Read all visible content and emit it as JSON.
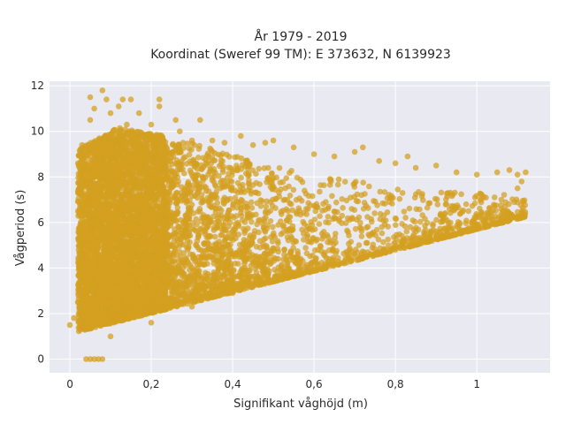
{
  "chart_data": {
    "type": "scatter",
    "title": [
      "År 1979 - 2019",
      "Koordinat (Sweref 99 TM): E 373632, N 6139923"
    ],
    "xlabel": "Signifikant våghöjd (m)",
    "ylabel": "Vågperiod (s)",
    "xlim": [
      -0.05,
      1.18
    ],
    "ylim": [
      -0.6,
      12.2
    ],
    "xticks": [
      0,
      0.2,
      0.4,
      0.6,
      0.8,
      1
    ],
    "xtick_labels": [
      "0",
      "0,2",
      "0,4",
      "0,6",
      "0,8",
      "1"
    ],
    "yticks": [
      0,
      2,
      4,
      6,
      8,
      10,
      12
    ],
    "ytick_labels": [
      "0",
      "2",
      "4",
      "6",
      "8",
      "10",
      "12"
    ],
    "grid": true,
    "background": "#e9e9f1",
    "marker_color": "#d4a020",
    "series": [
      {
        "points": [
          [
            0.0,
            1.5
          ],
          [
            0.01,
            1.8
          ],
          [
            0.02,
            2.5
          ],
          [
            0.02,
            6.5
          ],
          [
            0.02,
            8.6
          ],
          [
            0.03,
            3.0
          ],
          [
            0.03,
            9.4
          ],
          [
            0.03,
            7.2
          ],
          [
            0.04,
            0.0
          ],
          [
            0.05,
            0.0
          ],
          [
            0.06,
            0.0
          ],
          [
            0.07,
            0.0
          ],
          [
            0.08,
            0.0
          ],
          [
            0.05,
            10.5
          ],
          [
            0.05,
            11.5
          ],
          [
            0.06,
            11.0
          ],
          [
            0.08,
            11.8
          ],
          [
            0.09,
            11.4
          ],
          [
            0.1,
            10.8
          ],
          [
            0.12,
            11.1
          ],
          [
            0.13,
            11.4
          ],
          [
            0.14,
            10.3
          ],
          [
            0.15,
            11.4
          ],
          [
            0.17,
            10.8
          ],
          [
            0.2,
            10.3
          ],
          [
            0.22,
            11.4
          ],
          [
            0.22,
            11.1
          ],
          [
            0.26,
            10.5
          ],
          [
            0.27,
            10.0
          ],
          [
            0.3,
            9.6
          ],
          [
            0.32,
            10.5
          ],
          [
            0.35,
            9.6
          ],
          [
            0.38,
            9.5
          ],
          [
            0.42,
            9.8
          ],
          [
            0.45,
            9.4
          ],
          [
            0.48,
            9.5
          ],
          [
            0.5,
            9.6
          ],
          [
            0.55,
            9.3
          ],
          [
            0.6,
            9.0
          ],
          [
            0.65,
            8.9
          ],
          [
            0.7,
            9.1
          ],
          [
            0.72,
            9.3
          ],
          [
            0.76,
            8.7
          ],
          [
            0.8,
            8.6
          ],
          [
            0.83,
            8.9
          ],
          [
            0.85,
            8.4
          ],
          [
            0.9,
            8.5
          ],
          [
            0.95,
            8.2
          ],
          [
            1.0,
            8.1
          ],
          [
            1.05,
            8.2
          ],
          [
            1.08,
            8.3
          ],
          [
            1.1,
            8.1
          ],
          [
            1.12,
            8.2
          ],
          [
            1.11,
            7.8
          ],
          [
            1.1,
            7.5
          ],
          [
            0.1,
            1.0
          ],
          [
            0.2,
            1.6
          ],
          [
            0.3,
            2.3
          ],
          [
            0.4,
            2.9
          ],
          [
            0.5,
            3.5
          ],
          [
            0.6,
            3.9
          ],
          [
            0.7,
            4.5
          ],
          [
            0.8,
            5.1
          ],
          [
            0.9,
            5.6
          ],
          [
            1.0,
            6.3
          ]
        ]
      }
    ]
  }
}
